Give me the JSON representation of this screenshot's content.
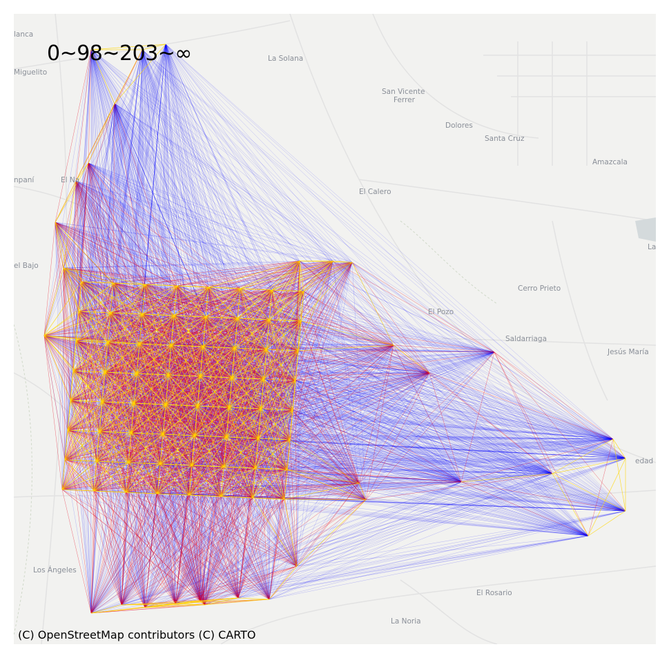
{
  "legend": {
    "title": "0~98~203~∞"
  },
  "attribution": "(C) OpenStreetMap contributors (C) CARTO",
  "places": {
    "p1": "lanca",
    "p2": "Miguelito",
    "p3": "La Solana",
    "p4": "San Vicente",
    "p4b": "Ferrer",
    "p5": "Dolores",
    "p6": "Santa Cruz",
    "p7": "Amazcala",
    "p8": "El Calero",
    "p9": "npaní",
    "p10": "El Na",
    "p11": "el Bajo",
    "p12": "La",
    "p13": "Cerro Prieto",
    "p14": "El Pozo",
    "p15": "Saldarriaga",
    "p16": "Jesús María",
    "p17": "edad",
    "p18": "Los Ángeles",
    "p19": "El Rosario",
    "p20": "La Noria"
  },
  "colors": {
    "short": "#ffd700",
    "medium": "#e8001c",
    "long": "#0000ff",
    "basemap": "#f2f2f0",
    "road": "#e0e0e0"
  },
  "breaks": [
    0,
    98,
    203,
    "∞"
  ]
}
